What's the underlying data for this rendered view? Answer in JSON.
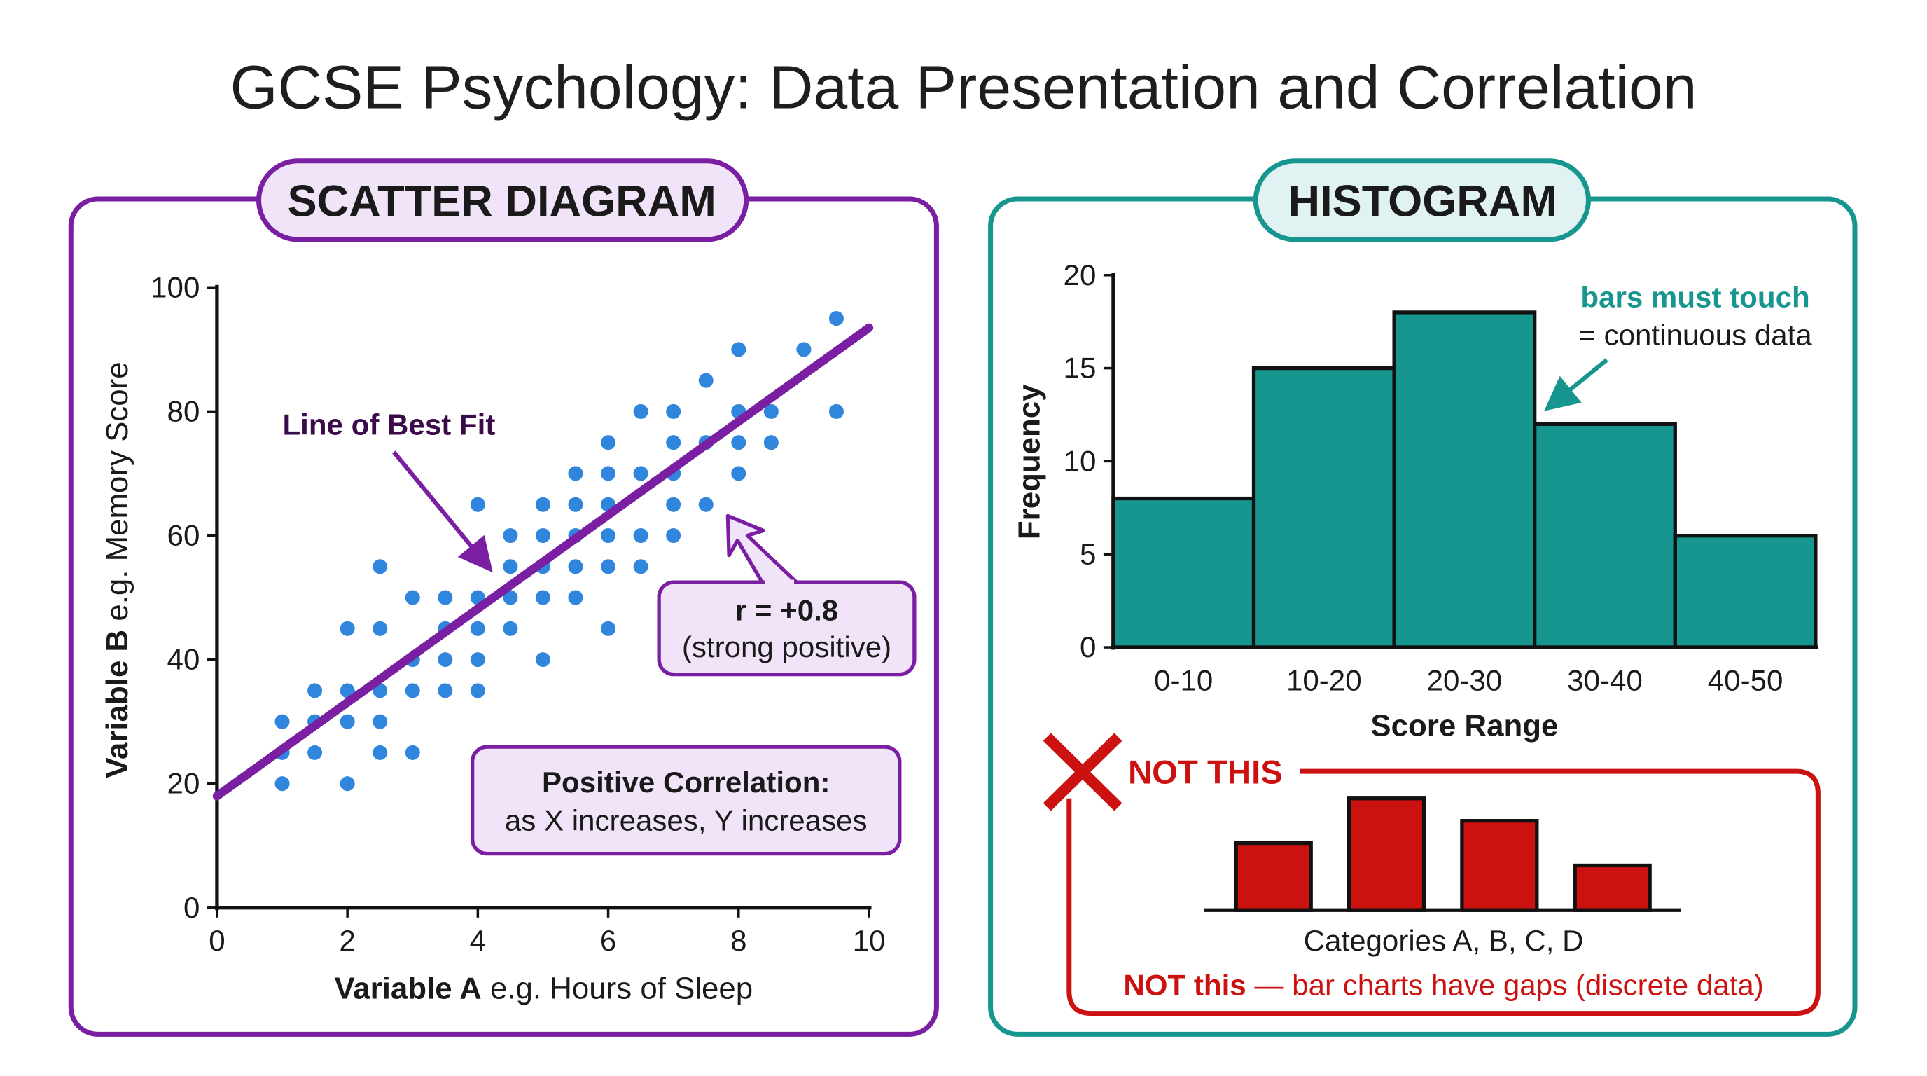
{
  "title": "GCSE Psychology: Data Presentation and Correlation",
  "colors": {
    "purple": "#7b1fa2",
    "teal": "#17968f",
    "dot_blue": "#2f86dc",
    "red": "#cc1111",
    "purple_fill": "#f1e4f8",
    "teal_fill": "#e0f3f2"
  },
  "scatter_panel": {
    "heading": "SCATTER DIAGRAM",
    "best_fit_label": "Line of Best Fit",
    "r_value": "r = +0.8",
    "r_desc": "(strong positive)",
    "correlation_title": "Positive Correlation:",
    "correlation_desc": "as X increases, Y increases"
  },
  "histogram_panel": {
    "heading": "HISTOGRAM",
    "touch_note_bold": "bars must touch",
    "touch_note": "= continuous data",
    "not_this_heading": "NOT THIS",
    "bar_chart_xlabel": "Categories A, B, C, D",
    "not_this_bold": "NOT this",
    "not_this_text": " — bar charts have gaps (discrete data)"
  },
  "chart_data": [
    {
      "type": "scatter",
      "xlabel_bold": "Variable A",
      "xlabel_rest": " e.g. Hours of Sleep",
      "ylabel_bold": "Variable B",
      "ylabel_rest": " e.g. Memory Score",
      "xlim": [
        0,
        10
      ],
      "ylim": [
        0,
        100
      ],
      "xticks": [
        "0",
        "2",
        "4",
        "6",
        "8",
        "10"
      ],
      "yticks": [
        "0",
        "20",
        "40",
        "60",
        "80",
        "100"
      ],
      "best_fit": {
        "x": [
          0,
          10
        ],
        "y": [
          18,
          93.5
        ]
      },
      "points": [
        [
          1,
          30
        ],
        [
          1,
          25
        ],
        [
          1,
          20
        ],
        [
          1.5,
          35
        ],
        [
          1.5,
          30
        ],
        [
          1.5,
          25
        ],
        [
          2,
          45
        ],
        [
          2,
          35
        ],
        [
          2,
          30
        ],
        [
          2,
          20
        ],
        [
          2.5,
          55
        ],
        [
          2.5,
          45
        ],
        [
          2.5,
          35
        ],
        [
          2.5,
          30
        ],
        [
          2.5,
          25
        ],
        [
          3,
          50
        ],
        [
          3,
          40
        ],
        [
          3,
          35
        ],
        [
          3,
          25
        ],
        [
          3.5,
          50
        ],
        [
          3.5,
          45
        ],
        [
          3.5,
          40
        ],
        [
          3.5,
          35
        ],
        [
          4,
          65
        ],
        [
          4,
          50
        ],
        [
          4,
          45
        ],
        [
          4,
          40
        ],
        [
          4,
          35
        ],
        [
          4.5,
          60
        ],
        [
          4.5,
          55
        ],
        [
          4.5,
          50
        ],
        [
          4.5,
          45
        ],
        [
          5,
          65
        ],
        [
          5,
          60
        ],
        [
          5,
          55
        ],
        [
          5,
          50
        ],
        [
          5,
          40
        ],
        [
          5.5,
          70
        ],
        [
          5.5,
          65
        ],
        [
          5.5,
          60
        ],
        [
          5.5,
          55
        ],
        [
          5.5,
          50
        ],
        [
          6,
          75
        ],
        [
          6,
          70
        ],
        [
          6,
          65
        ],
        [
          6,
          60
        ],
        [
          6,
          55
        ],
        [
          6,
          45
        ],
        [
          6.5,
          80
        ],
        [
          6.5,
          70
        ],
        [
          6.5,
          60
        ],
        [
          6.5,
          55
        ],
        [
          7,
          80
        ],
        [
          7,
          75
        ],
        [
          7,
          70
        ],
        [
          7,
          65
        ],
        [
          7,
          60
        ],
        [
          7.5,
          85
        ],
        [
          7.5,
          75
        ],
        [
          7.5,
          65
        ],
        [
          8,
          90
        ],
        [
          8,
          80
        ],
        [
          8,
          75
        ],
        [
          8,
          70
        ],
        [
          8.5,
          80
        ],
        [
          8.5,
          75
        ],
        [
          9,
          90
        ],
        [
          9.5,
          95
        ],
        [
          9.5,
          80
        ]
      ]
    },
    {
      "type": "bar",
      "subtype": "histogram",
      "categories": [
        "0-10",
        "10-20",
        "20-30",
        "30-40",
        "40-50"
      ],
      "values": [
        8,
        15,
        18,
        12,
        6
      ],
      "xlabel": "Score Range",
      "ylabel": "Frequency",
      "ylim": [
        0,
        20
      ],
      "yticks": [
        "0",
        "5",
        "10",
        "15",
        "20"
      ]
    },
    {
      "type": "bar",
      "categories": [
        "A",
        "B",
        "C",
        "D"
      ],
      "values": [
        3,
        5,
        4,
        2
      ],
      "xlabel": "Categories A, B, C, D"
    }
  ]
}
